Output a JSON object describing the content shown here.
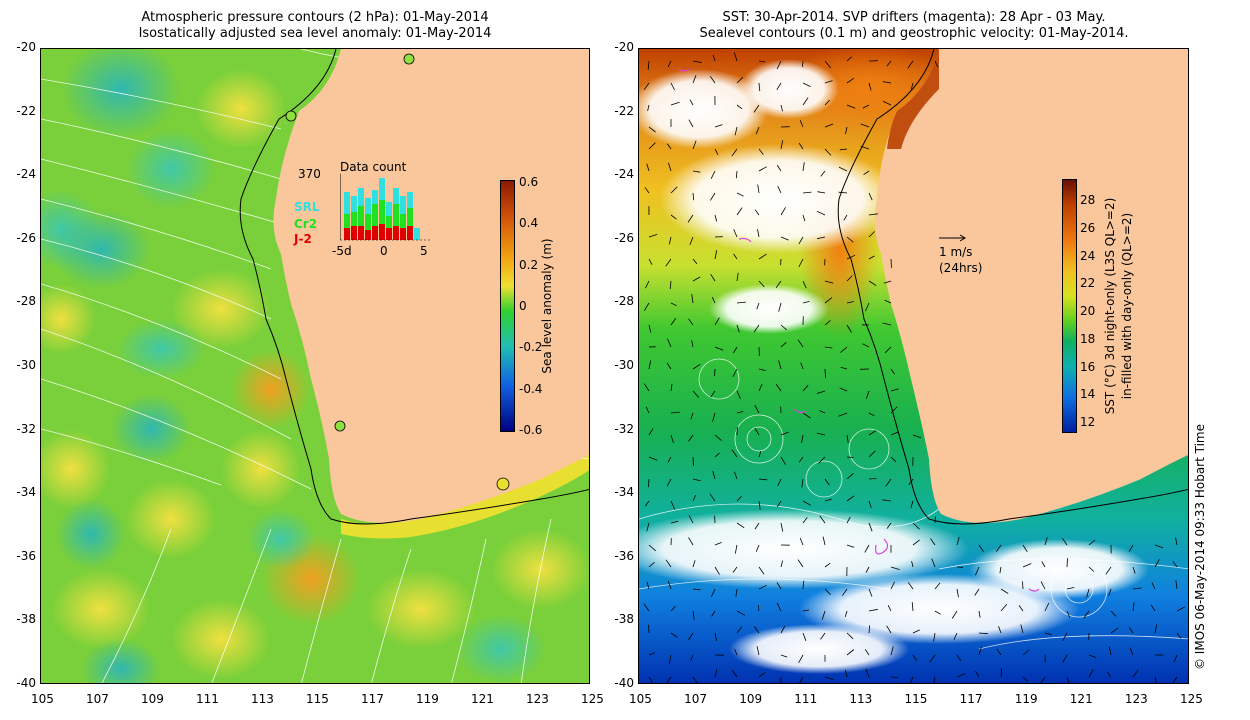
{
  "left_panel": {
    "title_line1": "Atmospheric pressure contours (2 hPa): 01-May-2014",
    "title_line2": "Isostatically adjusted sea level anomaly: 01-May-2014",
    "y_ticks": [
      "-20",
      "-22",
      "-24",
      "-26",
      "-28",
      "-30",
      "-32",
      "-34",
      "-36",
      "-38",
      "-40"
    ],
    "x_ticks": [
      "105",
      "107",
      "109",
      "111",
      "113",
      "115",
      "117",
      "119",
      "121",
      "123",
      "125"
    ],
    "colorbar": {
      "label": "Sea level anomaly (m)",
      "ticks": [
        "0.6",
        "0.4",
        "0.2",
        "0",
        "-0.2",
        "-0.4",
        "-0.6"
      ],
      "colors": [
        "#8b1a00",
        "#d0500a",
        "#f0a010",
        "#f0e030",
        "#30d030",
        "#20c0b0",
        "#1060e0",
        "#000080"
      ]
    },
    "inset": {
      "max_label": "370",
      "title": "Data count",
      "legend": [
        {
          "name": "SRL",
          "color": "#30e0e0"
        },
        {
          "name": "Cr2",
          "color": "#20e020"
        },
        {
          "name": "J-2",
          "color": "#e00000"
        }
      ],
      "x_ticks": [
        "-5d",
        "0",
        "5"
      ]
    }
  },
  "right_panel": {
    "title_line1": "SST: 30-Apr-2014. SVP drifters (magenta): 28 Apr - 03 May.",
    "title_line2": "Sealevel contours (0.1 m) and geostrophic velocity: 01-May-2014.",
    "y_ticks": [
      "-20",
      "-22",
      "-24",
      "-26",
      "-28",
      "-30",
      "-32",
      "-34",
      "-36",
      "-38",
      "-40"
    ],
    "x_ticks": [
      "105",
      "107",
      "109",
      "111",
      "113",
      "115",
      "117",
      "119",
      "121",
      "123",
      "125"
    ],
    "velocity_scale": "1 m/s",
    "velocity_scale_sub": "(24hrs)",
    "colorbar": {
      "label_line1": "SST (°C)  3d night-only (L3S QL>=2)",
      "label_line2": "in-filled with day-only (QL>=2)",
      "ticks": [
        "28",
        "26",
        "24",
        "22",
        "20",
        "18",
        "16",
        "14",
        "12"
      ],
      "colors": [
        "#6a1000",
        "#c04000",
        "#f07810",
        "#f0c020",
        "#d8e020",
        "#60d020",
        "#10b060",
        "#10b0b0",
        "#1070e0",
        "#0020a0"
      ]
    }
  },
  "credit": "© IMOS 06-May-2014 09:33 Hobart Time"
}
